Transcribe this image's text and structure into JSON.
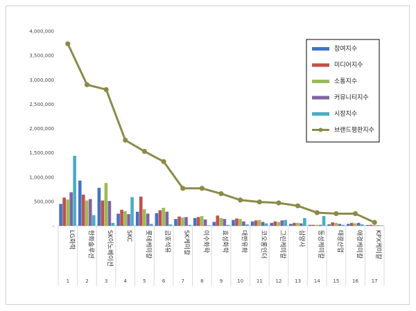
{
  "chart_data": {
    "type": "bar",
    "ylim": [
      0,
      4000000
    ],
    "yticks": [
      0,
      500000,
      1000000,
      1500000,
      2000000,
      2500000,
      3000000,
      3500000,
      4000000
    ],
    "ytick_labels": [
      "-",
      "500,000",
      "1,000,000",
      "1,500,000",
      "2,000,000",
      "2,500,000",
      "3,000,000",
      "3,500,000",
      "4,000,000"
    ],
    "categories": [
      "LG화학",
      "한화솔루션",
      "SK이노베이션",
      "SKC",
      "롯데케미칼",
      "금호석유",
      "SK케미칼",
      "이수화학",
      "효성화학",
      "대한유화",
      "코오롱인더",
      "그린케미칼",
      "삼양사",
      "동성케미칼",
      "태광산업",
      "애경케미칼",
      "KPX케미칼"
    ],
    "ranks": [
      "1",
      "2",
      "3",
      "4",
      "5",
      "6",
      "7",
      "8",
      "9",
      "10",
      "11",
      "12",
      "13",
      "14",
      "15",
      "16",
      "17"
    ],
    "series": [
      {
        "name": "참여지수",
        "color": "#4472C4",
        "values": [
          450000,
          930000,
          780000,
          250000,
          290000,
          260000,
          140000,
          160000,
          80000,
          120000,
          90000,
          60000,
          40000,
          20000,
          30000,
          40000,
          15000
        ]
      },
      {
        "name": "미디어지수",
        "color": "#C0504D",
        "values": [
          580000,
          640000,
          520000,
          330000,
          600000,
          320000,
          190000,
          180000,
          210000,
          150000,
          110000,
          90000,
          60000,
          20000,
          70000,
          60000,
          20000
        ]
      },
      {
        "name": "소통지수",
        "color": "#9BBB59",
        "values": [
          540000,
          520000,
          880000,
          300000,
          340000,
          370000,
          170000,
          200000,
          160000,
          140000,
          120000,
          80000,
          60000,
          20000,
          60000,
          50000,
          15000
        ]
      },
      {
        "name": "커뮤니티지수",
        "color": "#8064A2",
        "values": [
          690000,
          550000,
          510000,
          240000,
          250000,
          290000,
          180000,
          130000,
          140000,
          90000,
          80000,
          110000,
          50000,
          20000,
          40000,
          60000,
          10000
        ]
      },
      {
        "name": "시장지수",
        "color": "#4BACC6",
        "values": [
          1440000,
          220000,
          60000,
          590000,
          40000,
          30000,
          20000,
          10000,
          20000,
          30000,
          50000,
          120000,
          160000,
          200000,
          20000,
          30000,
          10000
        ]
      }
    ],
    "line": {
      "name": "브랜드평판지수",
      "color": "#8C8A48",
      "values": [
        3740000,
        2900000,
        2800000,
        1760000,
        1530000,
        1320000,
        770000,
        770000,
        660000,
        530000,
        490000,
        470000,
        410000,
        270000,
        250000,
        250000,
        70000
      ]
    },
    "legend_position": "top-right",
    "grid": false
  }
}
